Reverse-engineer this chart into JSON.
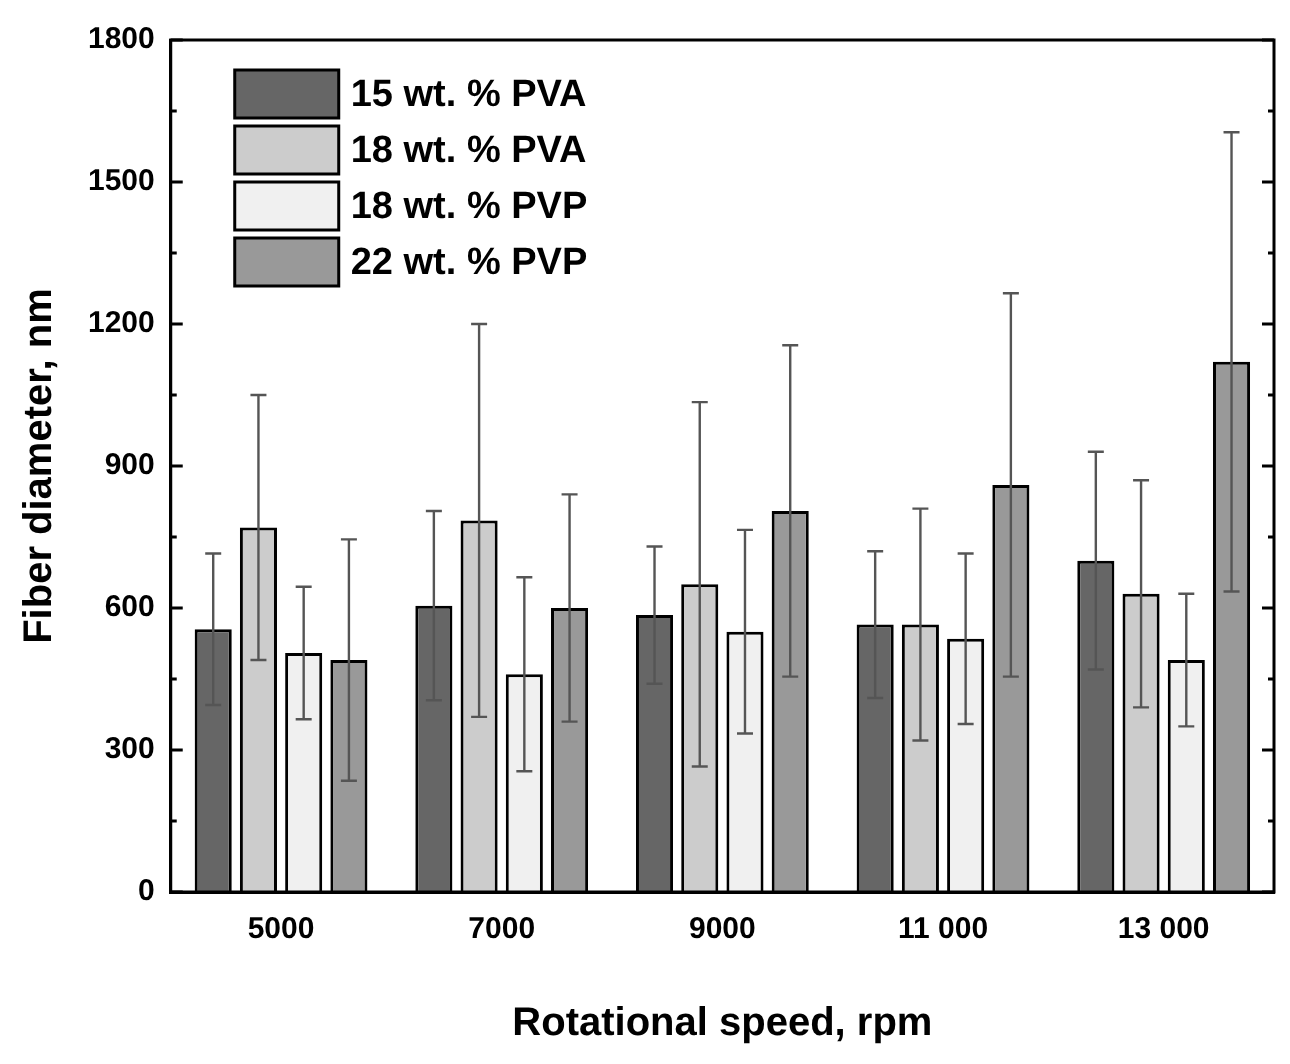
{
  "chart_data": {
    "type": "bar",
    "xlabel": "Rotational speed, rpm",
    "ylabel": "Fiber diameter, nm",
    "categories": [
      "5000",
      "7000",
      "9000",
      "11 000",
      "13 000"
    ],
    "ylim": [
      0,
      1800
    ],
    "yticks": [
      0,
      300,
      600,
      900,
      1200,
      1500,
      1800
    ],
    "grid": false,
    "legend": "top left",
    "series": [
      {
        "name": "15 wt. % PVA",
        "color": "#666666",
        "values": [
          555,
          605,
          585,
          565,
          700
        ],
        "errors": [
          160,
          200,
          145,
          155,
          230
        ]
      },
      {
        "name": "18 wt. % PVA",
        "color": "#cccccc",
        "values": [
          770,
          785,
          650,
          565,
          630
        ],
        "errors": [
          280,
          415,
          385,
          245,
          240
        ]
      },
      {
        "name": "18 wt. % PVP",
        "color": "#f0f0f0",
        "values": [
          505,
          460,
          550,
          535,
          490
        ],
        "errors": [
          140,
          205,
          215,
          180,
          140
        ]
      },
      {
        "name": "22 wt. % PVP",
        "color": "#999999",
        "values": [
          490,
          600,
          805,
          860,
          1120
        ],
        "errors": [
          255,
          240,
          350,
          405,
          485
        ]
      }
    ]
  }
}
